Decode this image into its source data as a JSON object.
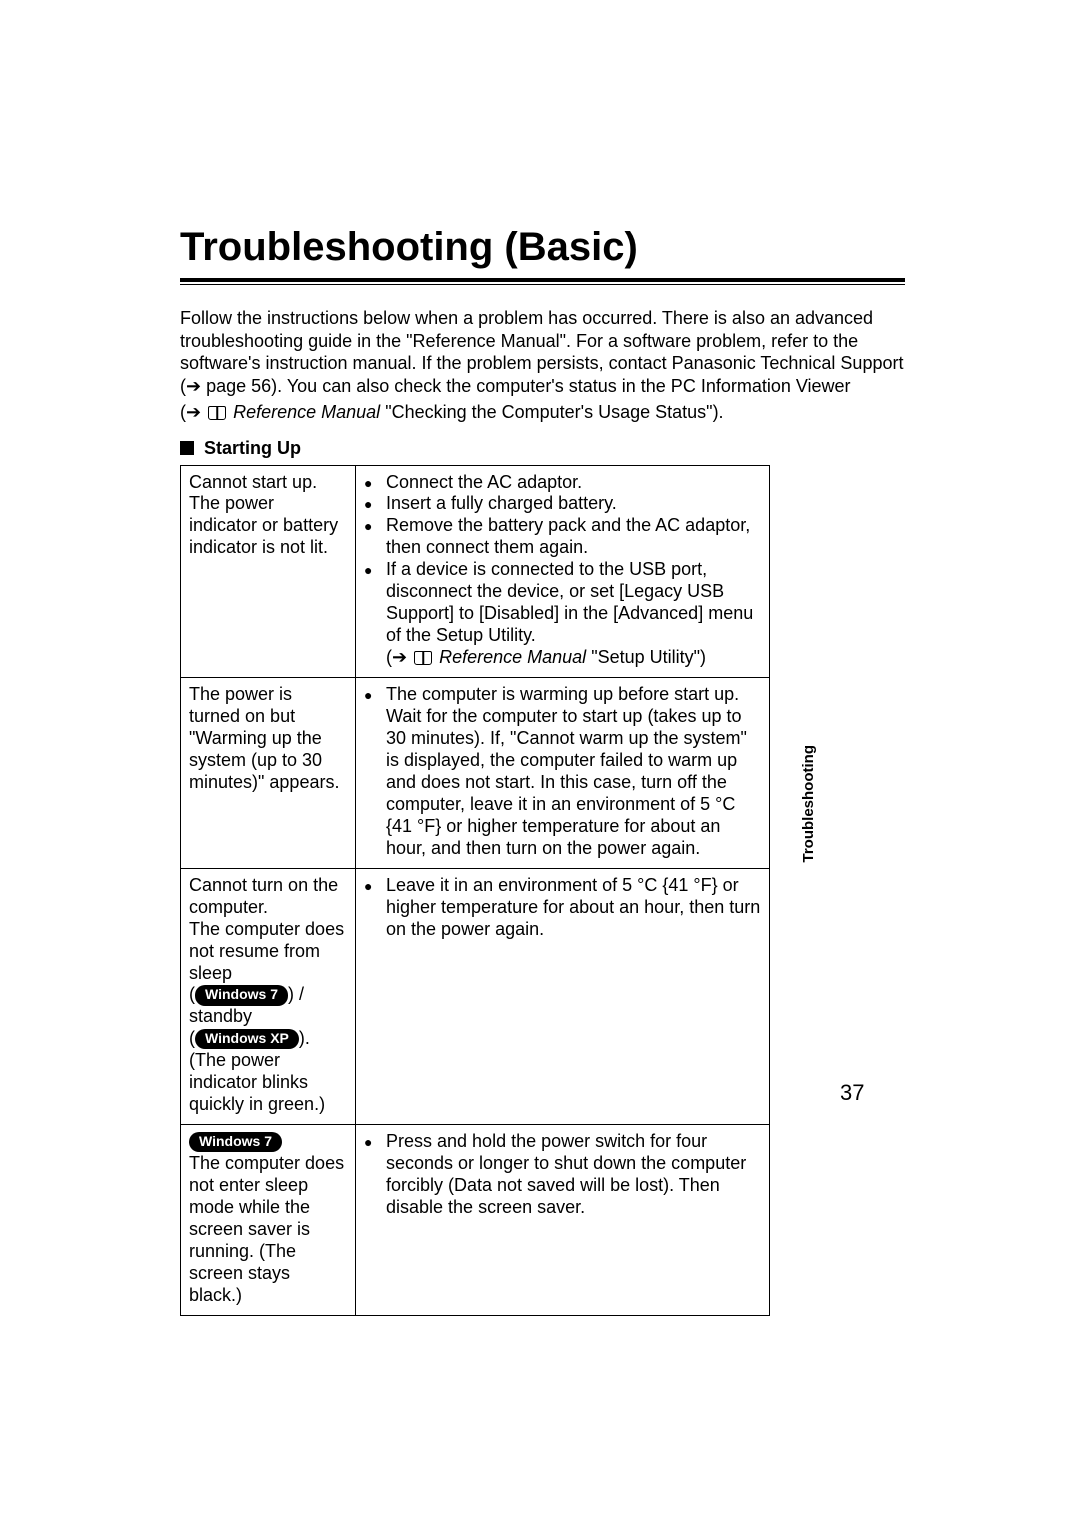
{
  "title": "Troubleshooting (Basic)",
  "intro": "Follow the instructions below when a problem has occurred. There is also an advanced troubleshooting guide in the \"Reference Manual\". For a software problem, refer to the software's instruction manual. If the problem persists, contact Panasonic Technical Support (➔ page 56). You can also check the computer's status in the PC Information Viewer",
  "ref_prefix": "(➔ ",
  "ref_manual_label": "Reference Manual",
  "ref_suffix": " \"Checking the Computer's Usage Status\").",
  "section_heading": "Starting Up",
  "rows": [
    {
      "problem": "Cannot start up.\nThe power indicator or battery indicator is not lit.",
      "solutions": [
        "Connect the AC adaptor.",
        "Insert a fully charged battery.",
        "Remove the battery pack and the AC adaptor, then connect them again.",
        "If a device is connected to the USB port, disconnect the device, or set [Legacy USB Support] to [Disabled] in the [Advanced] menu of the Setup Utility."
      ],
      "sub_ref": {
        "prefix": "(➔ ",
        "label": "Reference Manual",
        "suffix": " \"Setup Utility\")"
      }
    },
    {
      "problem": "The power is turned on but \"Warming up the system (up to 30 minutes)\" appears.",
      "solutions": [
        "The computer is warming up before start up. Wait for the computer to start up (takes up to 30 minutes). If, \"Cannot warm up the system\" is displayed, the computer failed to warm up and does not start. In this case, turn off the computer, leave it in an environment of 5 °C {41 °F} or higher temperature for about an hour, and then turn on the power again."
      ]
    },
    {
      "problem_parts": {
        "p1": "Cannot turn on the computer.\nThe computer does not resume from sleep",
        "badge1": "Windows 7",
        "mid": " / standby",
        "badge2": "Windows XP",
        "p2": ".\n(The power indicator blinks quickly in green.)"
      },
      "solutions": [
        "Leave it in an environment of 5 °C {41 °F} or higher temperature for about an hour, then turn on the power again."
      ]
    },
    {
      "problem_parts": {
        "badge1": "Windows 7",
        "p2": "The computer does not enter sleep mode while the screen saver is running. (The screen stays black.)"
      },
      "solutions": [
        "Press and hold the power switch for four seconds or longer to shut down the computer forcibly (Data not saved will be lost). Then disable the screen saver."
      ]
    }
  ],
  "side_tab": "Troubleshooting",
  "page_number": "37"
}
